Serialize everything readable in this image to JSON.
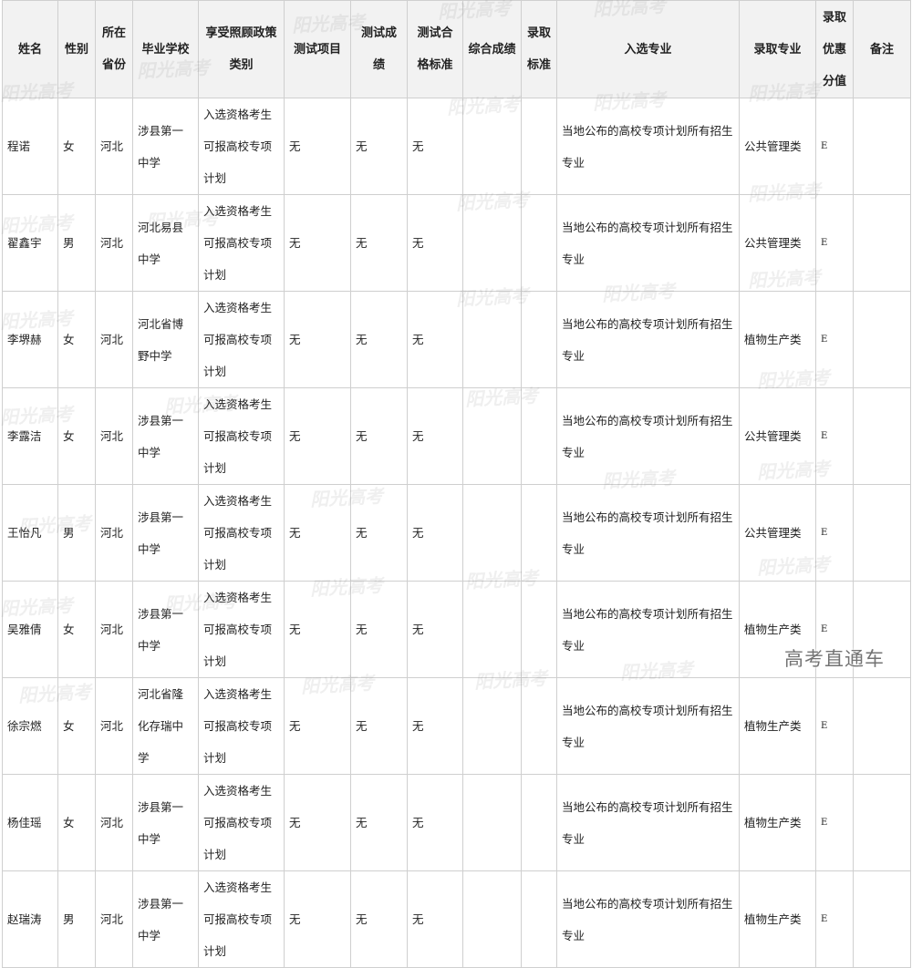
{
  "table": {
    "headers": [
      "姓名",
      "性别",
      "所在省份",
      "毕业学校",
      "享受照顾政策类别",
      "测试项目",
      "测试成绩",
      "测试合格标准",
      "综合成绩",
      "录取标准",
      "入选专业",
      "录取专业",
      "录取优惠分值",
      "备注"
    ],
    "rows": [
      [
        "程诺",
        "女",
        "河北",
        "涉县第一中学",
        "入选资格考生可报高校专项计划",
        "无",
        "无",
        "无",
        "",
        "",
        "当地公布的高校专项计划所有招生专业",
        "公共管理类",
        "E",
        ""
      ],
      [
        "翟鑫宇",
        "男",
        "河北",
        "河北易县中学",
        "入选资格考生可报高校专项计划",
        "无",
        "无",
        "无",
        "",
        "",
        "当地公布的高校专项计划所有招生专业",
        "公共管理类",
        "E",
        ""
      ],
      [
        "李堺赫",
        "女",
        "河北",
        "河北省博野中学",
        "入选资格考生可报高校专项计划",
        "无",
        "无",
        "无",
        "",
        "",
        "当地公布的高校专项计划所有招生专业",
        "植物生产类",
        "E",
        ""
      ],
      [
        "李露洁",
        "女",
        "河北",
        "涉县第一中学",
        "入选资格考生可报高校专项计划",
        "无",
        "无",
        "无",
        "",
        "",
        "当地公布的高校专项计划所有招生专业",
        "公共管理类",
        "E",
        ""
      ],
      [
        "王怡凡",
        "男",
        "河北",
        "涉县第一中学",
        "入选资格考生可报高校专项计划",
        "无",
        "无",
        "无",
        "",
        "",
        "当地公布的高校专项计划所有招生专业",
        "公共管理类",
        "E",
        ""
      ],
      [
        "吴雅倩",
        "女",
        "河北",
        "涉县第一中学",
        "入选资格考生可报高校专项计划",
        "无",
        "无",
        "无",
        "",
        "",
        "当地公布的高校专项计划所有招生专业",
        "植物生产类",
        "E",
        ""
      ],
      [
        "徐宗燃",
        "女",
        "河北",
        "河北省隆化存瑞中学",
        "入选资格考生可报高校专项计划",
        "无",
        "无",
        "无",
        "",
        "",
        "当地公布的高校专项计划所有招生专业",
        "植物生产类",
        "E",
        ""
      ],
      [
        "杨佳瑶",
        "女",
        "河北",
        "涉县第一中学",
        "入选资格考生可报高校专项计划",
        "无",
        "无",
        "无",
        "",
        "",
        "当地公布的高校专项计划所有招生专业",
        "植物生产类",
        "E",
        ""
      ],
      [
        "赵瑞涛",
        "男",
        "河北",
        "涉县第一中学",
        "入选资格考生可报高校专项计划",
        "无",
        "无",
        "无",
        "",
        "",
        "当地公布的高校专项计划所有招生专业",
        "植物生产类",
        "E",
        ""
      ]
    ]
  },
  "watermark": "阳光高考",
  "corner_badge": "高考直通车"
}
